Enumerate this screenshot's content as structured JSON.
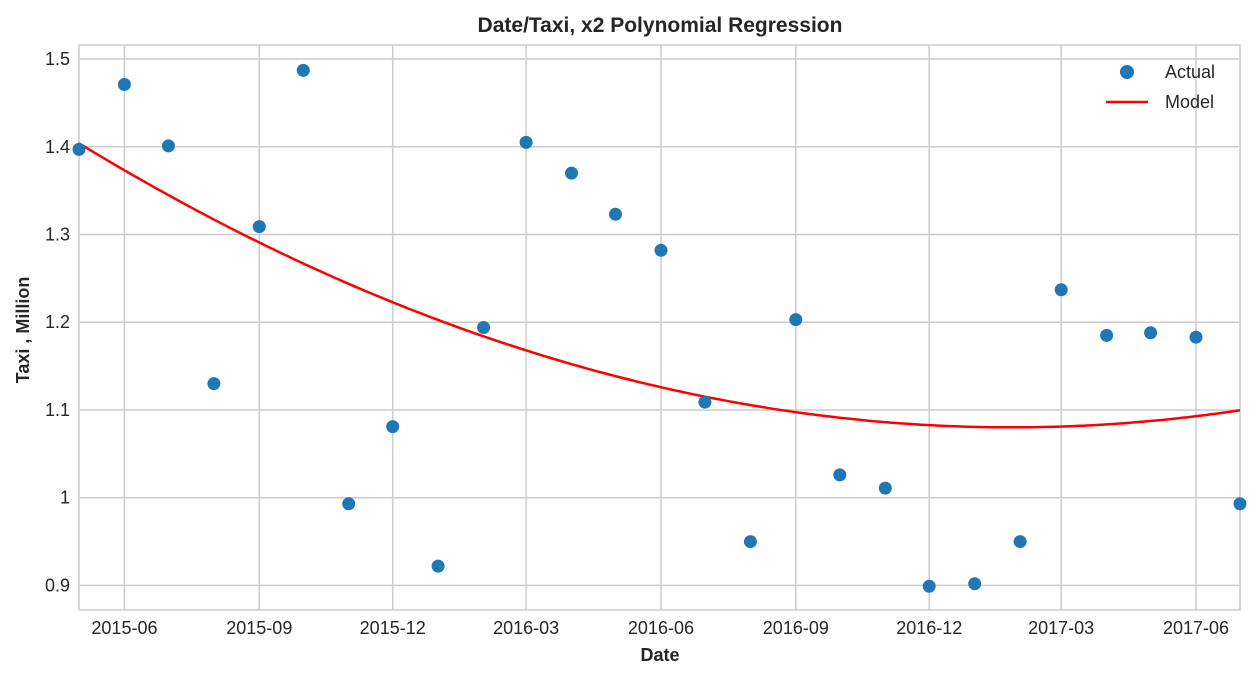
{
  "chart_data": {
    "type": "scatter",
    "title": "Date/Taxi, x2 Polynomial Regression",
    "xlabel": "Date",
    "ylabel": "Taxi , Million",
    "xlim": [
      "2015-05-01",
      "2017-07-01"
    ],
    "ylim": [
      0.872,
      1.516
    ],
    "x_ticks": [
      "2015-06",
      "2015-09",
      "2015-12",
      "2016-03",
      "2016-06",
      "2016-09",
      "2016-12",
      "2017-03",
      "2017-06"
    ],
    "y_ticks": [
      "0.9",
      "1",
      "1.1",
      "1.2",
      "1.3",
      "1.4",
      "1.5"
    ],
    "grid": true,
    "legend_position": "top-right",
    "series": [
      {
        "name": "Actual",
        "kind": "scatter",
        "color": "#1f77b4",
        "x": [
          "2015-05-01",
          "2015-06-01",
          "2015-07-01",
          "2015-08-01",
          "2015-09-01",
          "2015-10-01",
          "2015-11-01",
          "2015-12-01",
          "2016-01-01",
          "2016-02-01",
          "2016-03-01",
          "2016-04-01",
          "2016-05-01",
          "2016-06-01",
          "2016-07-01",
          "2016-08-01",
          "2016-09-01",
          "2016-10-01",
          "2016-11-01",
          "2016-12-01",
          "2017-01-01",
          "2017-02-01",
          "2017-03-01",
          "2017-04-01",
          "2017-05-01",
          "2017-06-01",
          "2017-07-01"
        ],
        "y": [
          1.397,
          1.471,
          1.401,
          1.13,
          1.309,
          1.487,
          0.993,
          1.081,
          0.922,
          1.194,
          1.405,
          1.37,
          1.323,
          1.282,
          1.109,
          0.95,
          1.203,
          1.026,
          1.011,
          0.899,
          0.902,
          0.95,
          1.237,
          1.185,
          1.188,
          1.183,
          0.993
        ]
      },
      {
        "name": "Model",
        "kind": "line",
        "color": "#ff0000",
        "x": [
          "2015-05-01",
          "2015-06-01",
          "2015-08-01",
          "2015-10-01",
          "2015-12-01",
          "2016-02-01",
          "2016-04-01",
          "2016-06-01",
          "2016-08-01",
          "2016-10-01",
          "2016-12-01",
          "2017-02-01",
          "2017-04-01",
          "2017-06-01",
          "2017-07-01"
        ],
        "y": [
          1.403,
          1.373,
          1.318,
          1.267,
          1.223,
          1.186,
          1.152,
          1.125,
          1.105,
          1.091,
          1.082,
          1.08,
          1.084,
          1.093,
          1.1
        ]
      }
    ]
  }
}
